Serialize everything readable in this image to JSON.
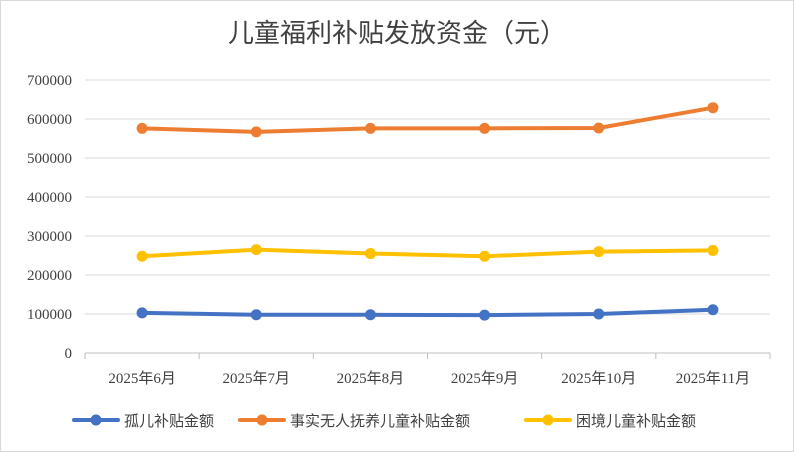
{
  "chart_data": {
    "type": "line",
    "title": "儿童福利补贴发放资金（元）",
    "categories": [
      "2025年6月",
      "2025年7月",
      "2025年8月",
      "2025年9月",
      "2025年10月",
      "2025年11月"
    ],
    "ylim": [
      0,
      700000
    ],
    "yticks": [
      0,
      100000,
      200000,
      300000,
      400000,
      500000,
      600000,
      700000
    ],
    "ytick_labels": [
      "0",
      "100000",
      "200000",
      "300000",
      "400000",
      "500000",
      "600000",
      "700000"
    ],
    "grid": true,
    "legend": "bottom",
    "series": [
      {
        "name": "孤儿补贴金额",
        "color": "#4472c4",
        "values": [
          103000,
          98000,
          98000,
          97000,
          100000,
          111000
        ]
      },
      {
        "name": "事实无人抚养儿童补贴金额",
        "color": "#ed7d31",
        "values": [
          576000,
          567000,
          576000,
          576000,
          577000,
          629000
        ]
      },
      {
        "name": "困境儿童补贴金额",
        "color": "#ffc000",
        "values": [
          248000,
          265000,
          255000,
          248000,
          260000,
          263000
        ]
      }
    ]
  }
}
